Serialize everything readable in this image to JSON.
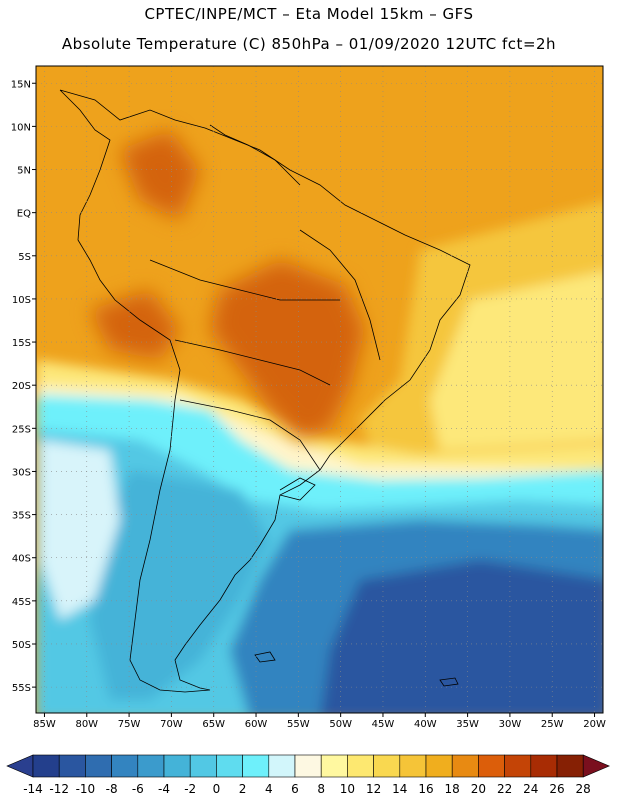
{
  "title": {
    "line1": "CPTEC/INPE/MCT –  Eta Model 15km – GFS",
    "line2": "Absolute Temperature (C) 850hPa – 01/09/2020 12UTC fct=2h"
  },
  "map": {
    "lon_min": -86,
    "lon_max": -19,
    "lat_min": -58,
    "lat_max": 17,
    "lon_ticks": [
      "85W",
      "80W",
      "75W",
      "70W",
      "65W",
      "60W",
      "55W",
      "50W",
      "45W",
      "40W",
      "35W",
      "30W",
      "25W",
      "20W"
    ],
    "lat_ticks": [
      "15N",
      "10N",
      "5N",
      "EQ",
      "5S",
      "10S",
      "15S",
      "20S",
      "25S",
      "30S",
      "35S",
      "40S",
      "45S",
      "50S",
      "55S"
    ]
  },
  "colorbar": {
    "labels": [
      "-14",
      "-12",
      "-10",
      "-8",
      "-6",
      "-4",
      "-2",
      "0",
      "2",
      "4",
      "6",
      "8",
      "10",
      "12",
      "14",
      "16",
      "18",
      "20",
      "22",
      "24",
      "26",
      "28"
    ],
    "colors": [
      "#233f8c",
      "#2a56a0",
      "#2f6db0",
      "#3384c0",
      "#3b9bcc",
      "#44b3d8",
      "#52c8e4",
      "#5fdcef",
      "#6ef0fb",
      "#d2f6fb",
      "#fdf8e2",
      "#fff8a0",
      "#fde870",
      "#f9d850",
      "#f5c438",
      "#f0ae1e",
      "#e88a12",
      "#dc5e0a",
      "#c44406",
      "#a82c04",
      "#862004"
    ],
    "under_color": "#2a3f8f",
    "over_color": "#7a0f1e"
  },
  "colors": {
    "hot": "#d4640c",
    "warm": "#eea21c",
    "mild": "#f5c63c",
    "pale": "#fde87a",
    "cream": "#fff6cc",
    "cyan": "#6ef0fb",
    "aqua": "#52c8e4",
    "sky": "#44b3d8",
    "blue": "#3384c0",
    "deep": "#2a56a0",
    "ice": "#d8f4fa",
    "coast": "#000000"
  }
}
